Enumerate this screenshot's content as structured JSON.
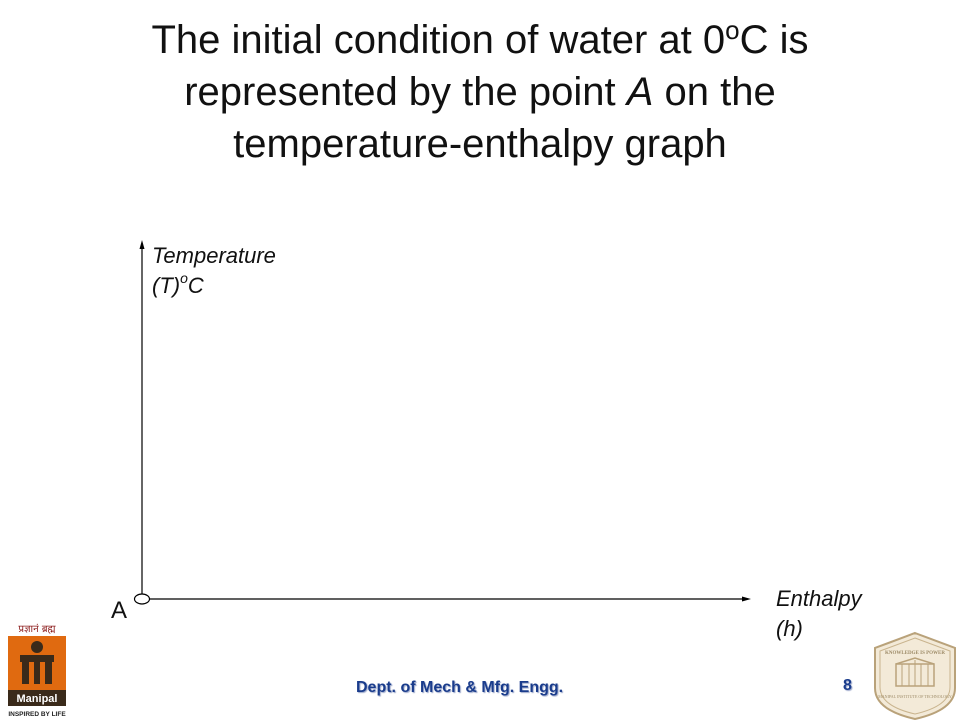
{
  "slide": {
    "title_line1_pre": "The initial condition of water at 0",
    "title_line1_sup": "o",
    "title_line1_post": "C is",
    "title_line2_pre": "represented by the point ",
    "title_line2_italic": "A",
    "title_line2_post": " on the",
    "title_line3": "temperature-enthalpy graph"
  },
  "diagram": {
    "y_axis_label_line1": "Temperature",
    "y_axis_label_line2_pre": "(T)",
    "y_axis_label_line2_sup": "o",
    "y_axis_label_line2_post": "C",
    "x_axis_label_line1": "Enthalpy",
    "x_axis_label_line2": "(h)",
    "point_label": "A"
  },
  "footer": {
    "department": "Dept. of Mech & Mfg. Engg.",
    "page_number": "8"
  },
  "logos": {
    "left_tagline_top": "प्रज्ञानं ब्रह्म",
    "left_name": "Manipal",
    "left_tagline_bottom": "INSPIRED BY LIFE",
    "right_motto": "KNOWLEDGE IS POWER",
    "right_name": "MANIPAL INSTITUTE OF TECHNOLOGY"
  }
}
